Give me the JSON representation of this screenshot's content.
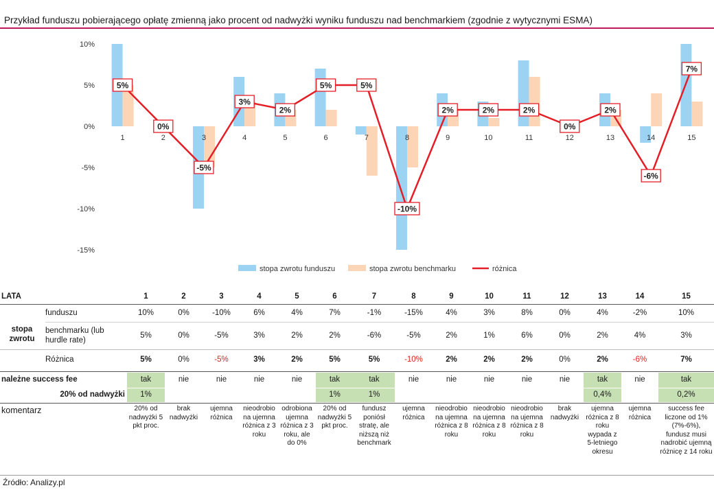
{
  "title": "Przykład funduszu pobierającego opłatę zmienną jako procent od nadwyżki wyniku funduszu nad benchmarkiem (zgodnie z wytycznymi ESMA)",
  "source": "Źródło: Analizy.pl",
  "colors": {
    "fund": "#9dd3f2",
    "benchmark": "#fbd5b5",
    "diff": "#e41e26",
    "accent": "#c0175a",
    "green": "#c6e0b4"
  },
  "chart_data": {
    "type": "bar",
    "categories": [
      "1",
      "2",
      "3",
      "4",
      "5",
      "6",
      "7",
      "8",
      "9",
      "10",
      "11",
      "12",
      "13",
      "14",
      "15"
    ],
    "series": [
      {
        "name": "stopa zwrotu funduszu",
        "type": "bar",
        "values": [
          10,
          0,
          -10,
          6,
          4,
          7,
          -1,
          -15,
          4,
          3,
          8,
          0,
          4,
          -2,
          10
        ]
      },
      {
        "name": "stopa zwrotu benchmarku",
        "type": "bar",
        "values": [
          5,
          0,
          -5,
          3,
          2,
          2,
          -6,
          -5,
          2,
          1,
          6,
          0,
          2,
          4,
          3
        ]
      },
      {
        "name": "różnica",
        "type": "line",
        "values": [
          5,
          0,
          -5,
          3,
          2,
          5,
          5,
          -10,
          2,
          2,
          2,
          0,
          2,
          -6,
          7
        ]
      }
    ],
    "data_labels": [
      "5%",
      "0%",
      "-5%",
      "3%",
      "2%",
      "5%",
      "5%",
      "-10%",
      "2%",
      "2%",
      "2%",
      "0%",
      "2%",
      "-6%",
      "7%"
    ],
    "ylim": [
      -15,
      10
    ],
    "yticks": [
      10,
      5,
      0,
      -5,
      -10,
      -15
    ],
    "ytick_labels": [
      "10%",
      "5%",
      "0%",
      "-5%",
      "-10%",
      "-15%"
    ],
    "legend_position": "bottom",
    "grid": false
  },
  "table": {
    "header_label": "LATA",
    "years": [
      "1",
      "2",
      "3",
      "4",
      "5",
      "6",
      "7",
      "8",
      "9",
      "10",
      "11",
      "12",
      "13",
      "14",
      "15"
    ],
    "group_label": "stopa zwrotu",
    "fund_label": "funduszu",
    "benchmark_label": "benchmarku (lub hurdle rate)",
    "diff_label": "Różnica",
    "fee_label": "należne success fee",
    "fee20_label": "20% od nadwyżki",
    "comment_label": "komentarz",
    "fund": [
      "10%",
      "0%",
      "-10%",
      "6%",
      "4%",
      "7%",
      "-1%",
      "-15%",
      "4%",
      "3%",
      "8%",
      "0%",
      "4%",
      "-2%",
      "10%"
    ],
    "benchmark": [
      "5%",
      "0%",
      "-5%",
      "3%",
      "2%",
      "2%",
      "-6%",
      "-5%",
      "2%",
      "1%",
      "6%",
      "0%",
      "2%",
      "4%",
      "3%"
    ],
    "diff": [
      "5%",
      "0%",
      "-5%",
      "3%",
      "2%",
      "5%",
      "5%",
      "-10%",
      "2%",
      "2%",
      "2%",
      "0%",
      "2%",
      "-6%",
      "7%"
    ],
    "fee": [
      "tak",
      "nie",
      "nie",
      "nie",
      "nie",
      "tak",
      "tak",
      "nie",
      "nie",
      "nie",
      "nie",
      "nie",
      "tak",
      "nie",
      "tak"
    ],
    "fee20": [
      "1%",
      "",
      "",
      "",
      "",
      "1%",
      "1%",
      "",
      "",
      "",
      "",
      "",
      "0,4%",
      "",
      "0,2%"
    ],
    "comments": [
      "20% od nadwyżki 5 pkt proc.",
      "brak nadwyżki",
      "ujemna różnica",
      "nieodrobio na ujemna różnica z 3 roku",
      "odrobiona ujemna różnica z 3 roku, ale do 0%",
      "20% od nadwyżki 5 pkt proc.",
      "fundusz poniósł stratę, ale niższą niż benchmark",
      "ujemna różnica",
      "nieodrobio na ujemna różnica z 8 roku",
      "nieodrobio na ujemna różnica z 8 roku",
      "nieodrobio na ujemna różnica z 8 roku",
      "brak nadwyżki",
      "ujemna różnica z 8 roku wypada z 5-letniego okresu",
      "ujemna różnica",
      "success fee liczone od 1% (7%-6%), fundusz musi nadrobić ujemną różnicę z 14 roku"
    ]
  }
}
